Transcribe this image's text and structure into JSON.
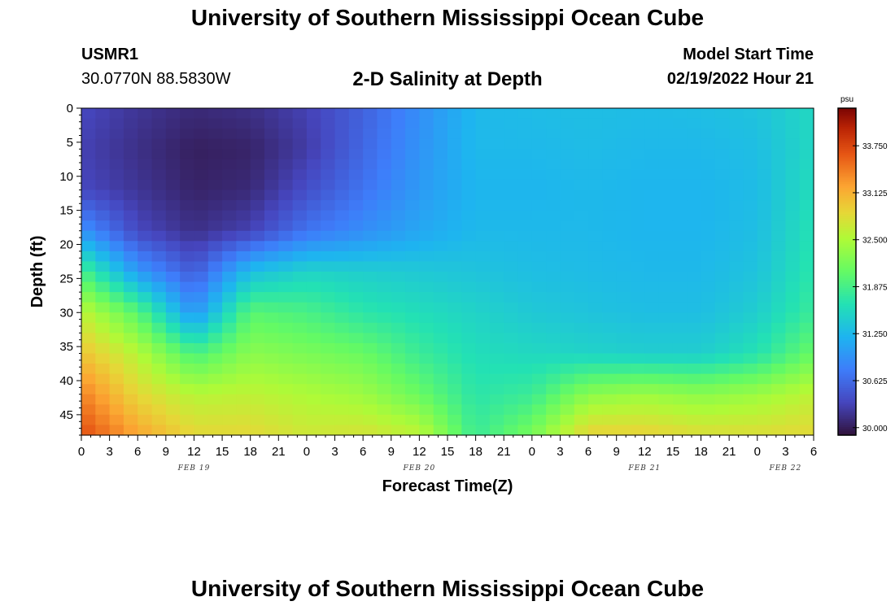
{
  "header": {
    "title": "University of Southern Mississippi Ocean Cube",
    "station_id": "USMR1",
    "station_coords": "30.0770N  88.5830W",
    "subtitle": "2-D Salinity at Depth",
    "model_start_label": "Model Start Time",
    "model_start_value": "02/19/2022 Hour 21"
  },
  "footer": {
    "title": "University of Southern Mississippi Ocean Cube"
  },
  "chart_data": {
    "type": "heatmap",
    "title": "2-D Salinity at Depth",
    "xlabel": "Forecast Time(Z)",
    "ylabel": "Depth (ft)",
    "x_tick_labels": [
      "0",
      "3",
      "6",
      "9",
      "12",
      "15",
      "18",
      "21",
      "0",
      "3",
      "6",
      "9",
      "12",
      "15",
      "18",
      "21",
      "0",
      "3",
      "6",
      "9",
      "12",
      "15",
      "18",
      "21",
      "0",
      "3",
      "6"
    ],
    "x_range_hours": [
      0,
      78
    ],
    "date_labels": [
      {
        "label": "FEB 19",
        "hour": 12
      },
      {
        "label": "FEB 20",
        "hour": 36
      },
      {
        "label": "FEB 21",
        "hour": 60
      },
      {
        "label": "FEB 22",
        "hour": 75
      }
    ],
    "y_ticks": [
      0,
      5,
      10,
      15,
      20,
      25,
      30,
      35,
      40,
      45
    ],
    "y_range_ft": [
      0,
      48
    ],
    "y_inverted": true,
    "colorbar": {
      "unit": "psu",
      "min": 29.9,
      "max": 34.25,
      "tick_values": [
        30.0,
        30.625,
        31.25,
        31.875,
        32.5,
        33.125,
        33.75
      ],
      "tick_labels": [
        "30.000",
        "30.625",
        "31.250",
        "31.875",
        "32.500",
        "33.125",
        "33.750"
      ],
      "colormap": "turbo"
    },
    "grid_note": "Salinity values in psu; rows = depth (ft) at 0,6,12,18,24,30,36,42,48; columns = forecast hour 0..78 every 6 h",
    "grid_depths_ft": [
      0,
      6,
      12,
      18,
      24,
      30,
      36,
      42,
      48
    ],
    "grid_hours": [
      0,
      6,
      12,
      18,
      24,
      30,
      36,
      42,
      48,
      54,
      60,
      66,
      72,
      78
    ],
    "values": [
      [
        30.35,
        30.2,
        30.1,
        30.15,
        30.3,
        30.55,
        30.9,
        31.25,
        31.28,
        31.3,
        31.28,
        31.3,
        31.35,
        31.55
      ],
      [
        30.3,
        30.15,
        30.02,
        30.05,
        30.25,
        30.6,
        30.95,
        31.25,
        31.25,
        31.28,
        31.25,
        31.25,
        31.3,
        31.55
      ],
      [
        30.35,
        30.2,
        30.05,
        30.1,
        30.4,
        30.7,
        31.0,
        31.22,
        31.22,
        31.25,
        31.22,
        31.22,
        31.28,
        31.6
      ],
      [
        30.95,
        30.35,
        30.15,
        30.3,
        30.7,
        30.9,
        31.1,
        31.25,
        31.25,
        31.25,
        31.22,
        31.22,
        31.3,
        31.65
      ],
      [
        31.9,
        31.0,
        30.5,
        31.3,
        31.5,
        31.45,
        31.4,
        31.35,
        31.3,
        31.28,
        31.25,
        31.25,
        31.35,
        31.7
      ],
      [
        32.6,
        32.0,
        30.95,
        32.0,
        31.9,
        31.7,
        31.6,
        31.5,
        31.4,
        31.35,
        31.3,
        31.3,
        31.45,
        31.8
      ],
      [
        33.0,
        32.55,
        31.9,
        32.3,
        32.2,
        32.1,
        31.8,
        31.6,
        31.55,
        31.5,
        31.45,
        31.45,
        31.65,
        32.1
      ],
      [
        33.4,
        32.85,
        32.55,
        32.6,
        32.5,
        32.4,
        32.1,
        31.7,
        31.8,
        32.3,
        32.4,
        32.3,
        32.4,
        32.6
      ],
      [
        33.7,
        33.2,
        32.85,
        32.85,
        32.7,
        32.75,
        32.6,
        31.8,
        32.2,
        32.9,
        32.9,
        32.8,
        32.8,
        32.85
      ]
    ]
  }
}
